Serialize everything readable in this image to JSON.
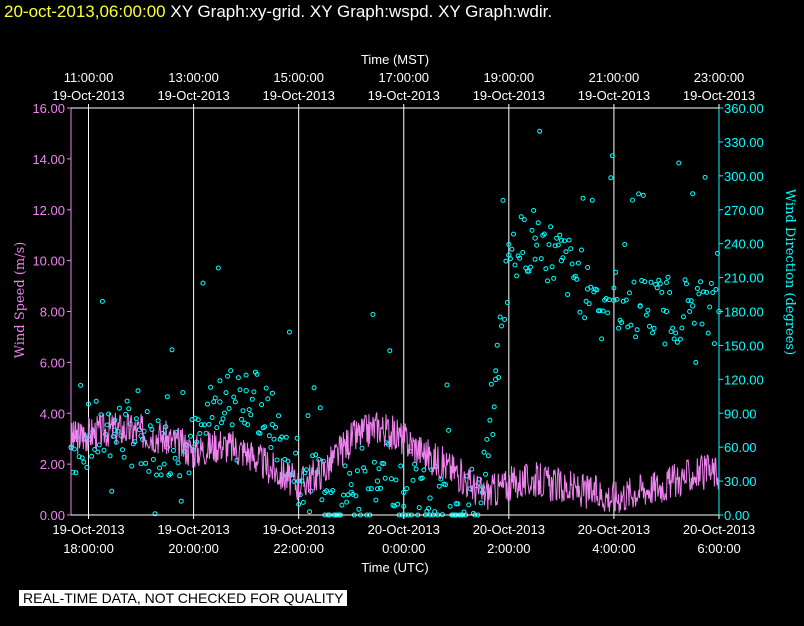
{
  "header": {
    "timestamp": "20-oct-2013,06:00:00",
    "title_rest": "XY Graph:xy-grid.  XY Graph:wspd.  XY Graph:wdir."
  },
  "disclaimer": "REAL-TIME DATA, NOT CHECKED FOR QUALITY",
  "colors": {
    "wind_speed": "#ee82ee",
    "wind_direction": "#00ffff",
    "background": "#000000",
    "grid": "#ffffff"
  },
  "chart_data": {
    "type": "scatter",
    "x_label_top": "Time (MST)",
    "x_label_bottom": "Time (UTC)",
    "y_label_left": "Wind Speed (m/s)",
    "y_label_right": "Wind Direction (degrees)",
    "x_range": [
      "19-Oct-2013 17:40 UTC",
      "20-Oct-2013 06:00 UTC"
    ],
    "ylim_left": [
      0,
      16
    ],
    "ylim_right": [
      0,
      360
    ],
    "grid": "vertical lines at 2-hour ticks",
    "top_ticks": [
      {
        "time": "11:00:00",
        "date": "19-Oct-2013"
      },
      {
        "time": "13:00:00",
        "date": "19-Oct-2013"
      },
      {
        "time": "15:00:00",
        "date": "19-Oct-2013"
      },
      {
        "time": "17:00:00",
        "date": "19-Oct-2013"
      },
      {
        "time": "19:00:00",
        "date": "19-Oct-2013"
      },
      {
        "time": "21:00:00",
        "date": "19-Oct-2013"
      },
      {
        "time": "23:00:00",
        "date": "19-Oct-2013"
      }
    ],
    "bottom_ticks": [
      {
        "date": "19-Oct-2013",
        "time": "18:00:00"
      },
      {
        "date": "19-Oct-2013",
        "time": "20:00:00"
      },
      {
        "date": "19-Oct-2013",
        "time": "22:00:00"
      },
      {
        "date": "20-Oct-2013",
        "time": "0:00:00"
      },
      {
        "date": "20-Oct-2013",
        "time": "2:00:00"
      },
      {
        "date": "20-Oct-2013",
        "time": "4:00:00"
      },
      {
        "date": "20-Oct-2013",
        "time": "6:00:00"
      }
    ],
    "left_ticks": [
      "0.00",
      "2.00",
      "4.00",
      "6.00",
      "8.00",
      "10.00",
      "12.00",
      "14.00",
      "16.00"
    ],
    "right_ticks": [
      "0.00",
      "30.00",
      "60.00",
      "90.00",
      "120.00",
      "150.00",
      "180.00",
      "210.00",
      "240.00",
      "270.00",
      "300.00",
      "330.00",
      "360.00"
    ],
    "series": [
      {
        "name": "Wind Speed",
        "units": "m/s",
        "axis": "left",
        "style": "line",
        "x_hours_utc": [
          17.67,
          18.0,
          18.5,
          19.0,
          19.5,
          20.0,
          20.5,
          21.0,
          21.5,
          22.0,
          22.5,
          23.0,
          23.5,
          24.0,
          24.5,
          25.0,
          25.5,
          26.0,
          26.5,
          27.0,
          27.5,
          28.0,
          28.5,
          29.0,
          29.5,
          30.0
        ],
        "values": [
          3.0,
          3.2,
          3.4,
          3.3,
          3.0,
          2.5,
          2.8,
          2.5,
          1.8,
          1.2,
          1.8,
          3.0,
          3.5,
          3.0,
          2.3,
          1.7,
          0.8,
          1.2,
          1.4,
          1.1,
          0.9,
          0.7,
          1.0,
          1.2,
          1.6,
          1.7
        ]
      },
      {
        "name": "Wind Direction",
        "units": "degrees",
        "axis": "right",
        "style": "points",
        "x_hours_utc": [
          17.67,
          18.0,
          18.5,
          19.0,
          19.5,
          20.0,
          20.5,
          21.0,
          21.5,
          22.0,
          22.5,
          23.0,
          23.5,
          24.0,
          24.5,
          25.0,
          25.5,
          25.75,
          26.0,
          26.5,
          27.0,
          27.5,
          28.0,
          28.5,
          29.0,
          29.5,
          30.0
        ],
        "values": [
          60,
          70,
          75,
          70,
          60,
          60,
          100,
          110,
          80,
          30,
          20,
          20,
          30,
          20,
          15,
          10,
          20,
          120,
          230,
          245,
          225,
          200,
          190,
          185,
          180,
          185,
          180
        ]
      }
    ]
  }
}
